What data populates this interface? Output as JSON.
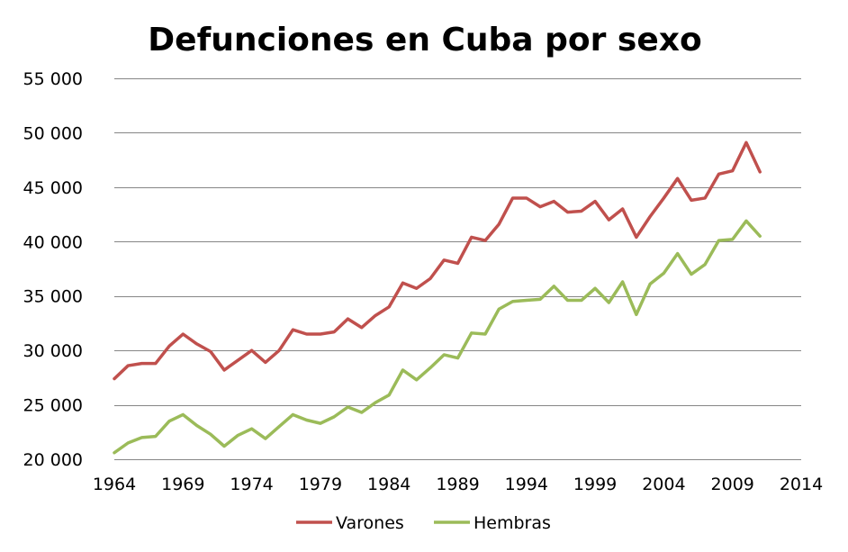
{
  "chart_data": {
    "type": "line",
    "title": "Defunciones en Cuba por sexo",
    "xlabel": "",
    "ylabel": "",
    "xlim": [
      1964,
      2014
    ],
    "ylim": [
      20000,
      55000
    ],
    "x_ticks": [
      1964,
      1969,
      1974,
      1979,
      1984,
      1989,
      1994,
      1999,
      2004,
      2009,
      2014
    ],
    "x_tick_labels": [
      "1964",
      "1969",
      "1974",
      "1979",
      "1984",
      "1989",
      "1994",
      "1999",
      "2004",
      "2009",
      "2014"
    ],
    "y_ticks": [
      20000,
      25000,
      30000,
      35000,
      40000,
      45000,
      50000,
      55000
    ],
    "y_tick_labels": [
      "20 000",
      "25 000",
      "30 000",
      "35 000",
      "40 000",
      "45 000",
      "50 000",
      "55 000"
    ],
    "grid": "horizontal",
    "legend_position": "bottom",
    "x": [
      1964,
      1965,
      1966,
      1967,
      1968,
      1969,
      1970,
      1971,
      1972,
      1973,
      1974,
      1975,
      1976,
      1977,
      1978,
      1979,
      1980,
      1981,
      1982,
      1983,
      1984,
      1985,
      1986,
      1987,
      1988,
      1989,
      1990,
      1991,
      1992,
      1993,
      1994,
      1995,
      1996,
      1997,
      1998,
      1999,
      2000,
      2001,
      2002,
      2003,
      2004,
      2005,
      2006,
      2007,
      2008,
      2009,
      2010,
      2011
    ],
    "series": [
      {
        "name": "Varones",
        "color": "#c0504d",
        "values": [
          27400,
          28600,
          28800,
          28800,
          30400,
          31500,
          30600,
          29900,
          28200,
          29100,
          30000,
          28900,
          30000,
          31900,
          31500,
          31500,
          31700,
          32900,
          32100,
          33200,
          34000,
          36200,
          35700,
          36600,
          38300,
          38000,
          40400,
          40100,
          41600,
          44000,
          44000,
          43200,
          43700,
          42700,
          42800,
          43700,
          42000,
          43000,
          40400,
          42300,
          44000,
          45800,
          43800,
          44000,
          46200,
          46500,
          49100,
          46400
        ]
      },
      {
        "name": "Hembras",
        "color": "#9bbb59",
        "values": [
          20600,
          21500,
          22000,
          22100,
          23500,
          24100,
          23100,
          22300,
          21200,
          22200,
          22800,
          21900,
          23000,
          24100,
          23600,
          23300,
          23900,
          24800,
          24300,
          25200,
          25900,
          28200,
          27300,
          28400,
          29600,
          29300,
          31600,
          31500,
          33800,
          34500,
          34600,
          34700,
          35900,
          34600,
          34600,
          35700,
          34400,
          36300,
          33300,
          36100,
          37100,
          38900,
          37000,
          37900,
          40100,
          40200,
          41900,
          40500
        ]
      }
    ]
  }
}
